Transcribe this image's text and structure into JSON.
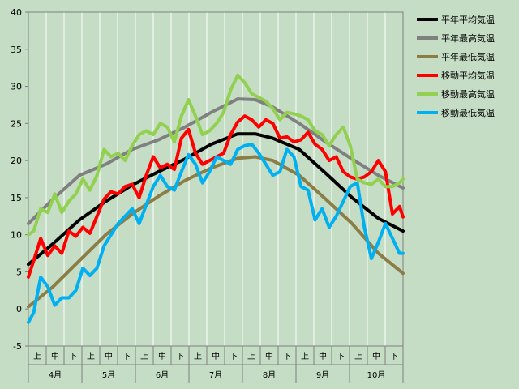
{
  "chart_data": {
    "type": "line",
    "ylim": [
      -5,
      40
    ],
    "yticks": [
      -5,
      0,
      5,
      10,
      15,
      20,
      25,
      30,
      35,
      40
    ],
    "day_range": [
      1,
      214
    ],
    "periods": [
      "上",
      "中",
      "下",
      "上",
      "中",
      "下",
      "上",
      "中",
      "下",
      "上",
      "中",
      "下",
      "上",
      "中",
      "下",
      "上",
      "中",
      "下",
      "上",
      "中",
      "下"
    ],
    "months": [
      "4月",
      "5月",
      "6月",
      "7月",
      "8月",
      "9月",
      "10月"
    ],
    "grid": "vertical",
    "legend_position": "right",
    "series": [
      {
        "name": "平年平均気温",
        "color": "#000000",
        "x": [
          1,
          15,
          30,
          45,
          60,
          75,
          90,
          105,
          120,
          130,
          140,
          155,
          170,
          185,
          200,
          214
        ],
        "y": [
          6.0,
          8.8,
          12.0,
          14.5,
          16.7,
          18.5,
          20.2,
          22.2,
          23.6,
          23.6,
          23.0,
          21.5,
          18.3,
          15.0,
          12.2,
          10.5
        ]
      },
      {
        "name": "平年最高気温",
        "color": "#808080",
        "x": [
          1,
          15,
          30,
          45,
          60,
          75,
          90,
          105,
          120,
          130,
          140,
          155,
          170,
          185,
          200,
          214
        ],
        "y": [
          11.5,
          14.8,
          18.0,
          19.5,
          21.5,
          22.8,
          24.5,
          26.5,
          28.3,
          28.2,
          27.2,
          25.0,
          22.5,
          20.2,
          18.0,
          16.3
        ]
      },
      {
        "name": "平年最低気温",
        "color": "#8b7d46",
        "x": [
          1,
          15,
          30,
          45,
          60,
          75,
          90,
          105,
          120,
          130,
          140,
          155,
          170,
          185,
          200,
          214
        ],
        "y": [
          0.3,
          3.0,
          6.5,
          10.0,
          12.8,
          15.2,
          17.3,
          19.0,
          20.3,
          20.5,
          20.0,
          18.0,
          14.8,
          11.5,
          7.5,
          4.8
        ]
      },
      {
        "name": "移動平均気温",
        "color": "#ff0000",
        "x": [
          1,
          4,
          8,
          12,
          16,
          20,
          24,
          28,
          32,
          36,
          40,
          44,
          48,
          52,
          56,
          60,
          64,
          68,
          72,
          76,
          80,
          84,
          88,
          92,
          96,
          100,
          104,
          108,
          112,
          116,
          120,
          124,
          128,
          132,
          136,
          140,
          144,
          148,
          152,
          156,
          160,
          164,
          168,
          172,
          176,
          180,
          184,
          188,
          192,
          196,
          200,
          204,
          208,
          212,
          214
        ],
        "y": [
          4.3,
          6.5,
          9.5,
          7.2,
          8.5,
          7.5,
          10.5,
          9.8,
          11.0,
          10.2,
          12.5,
          14.8,
          15.8,
          15.5,
          16.5,
          16.8,
          15.0,
          18.0,
          20.5,
          19.0,
          19.5,
          18.8,
          23.0,
          24.2,
          21.0,
          19.5,
          20.0,
          20.5,
          21.0,
          23.5,
          25.2,
          26.0,
          25.5,
          24.5,
          25.5,
          25.0,
          23.0,
          23.2,
          22.5,
          22.8,
          23.8,
          22.2,
          21.5,
          20.0,
          20.5,
          18.5,
          17.8,
          17.5,
          17.8,
          18.5,
          20.0,
          18.5,
          12.8,
          13.8,
          12.4
        ]
      },
      {
        "name": "移動最高気温",
        "color": "#92d050",
        "x": [
          1,
          4,
          8,
          12,
          16,
          20,
          24,
          28,
          32,
          36,
          40,
          44,
          48,
          52,
          56,
          60,
          64,
          68,
          72,
          76,
          80,
          84,
          88,
          92,
          96,
          100,
          104,
          108,
          112,
          116,
          120,
          124,
          128,
          132,
          136,
          140,
          144,
          148,
          152,
          156,
          160,
          164,
          168,
          172,
          176,
          180,
          184,
          188,
          192,
          196,
          200,
          204,
          208,
          212,
          214
        ],
        "y": [
          10.0,
          10.5,
          13.5,
          13.0,
          15.5,
          13.0,
          14.5,
          15.5,
          17.5,
          16.0,
          18.0,
          21.5,
          20.5,
          21.0,
          20.0,
          22.0,
          23.5,
          24.0,
          23.5,
          25.0,
          24.5,
          22.5,
          26.0,
          28.2,
          26.0,
          23.5,
          24.0,
          25.0,
          26.5,
          29.5,
          31.5,
          30.5,
          29.0,
          28.5,
          28.0,
          27.0,
          25.5,
          26.5,
          26.3,
          26.0,
          25.5,
          24.0,
          23.5,
          22.0,
          23.5,
          24.5,
          22.0,
          17.5,
          17.0,
          16.8,
          17.5,
          16.5,
          16.5,
          17.0,
          17.5
        ]
      },
      {
        "name": "移動最低気温",
        "color": "#00b0f0",
        "x": [
          1,
          4,
          8,
          12,
          16,
          20,
          24,
          28,
          32,
          36,
          40,
          44,
          48,
          52,
          56,
          60,
          64,
          68,
          72,
          76,
          80,
          84,
          88,
          92,
          96,
          100,
          104,
          108,
          112,
          116,
          120,
          124,
          128,
          132,
          136,
          140,
          144,
          148,
          152,
          156,
          160,
          164,
          168,
          172,
          176,
          180,
          184,
          188,
          192,
          196,
          200,
          204,
          208,
          212,
          214
        ],
        "y": [
          -1.8,
          -0.5,
          4.3,
          3.0,
          0.5,
          1.5,
          1.5,
          2.5,
          5.5,
          4.5,
          5.5,
          8.5,
          10.0,
          11.5,
          12.5,
          13.5,
          11.5,
          14.0,
          16.5,
          18.0,
          16.5,
          16.0,
          18.5,
          20.8,
          19.5,
          17.0,
          18.5,
          20.5,
          20.0,
          19.5,
          21.5,
          22.0,
          22.2,
          21.0,
          19.5,
          18.0,
          18.5,
          21.5,
          20.5,
          16.5,
          16.0,
          12.0,
          13.5,
          11.0,
          12.5,
          14.5,
          16.5,
          17.0,
          11.0,
          6.8,
          9.0,
          11.5,
          9.5,
          7.5,
          7.5
        ]
      }
    ]
  }
}
